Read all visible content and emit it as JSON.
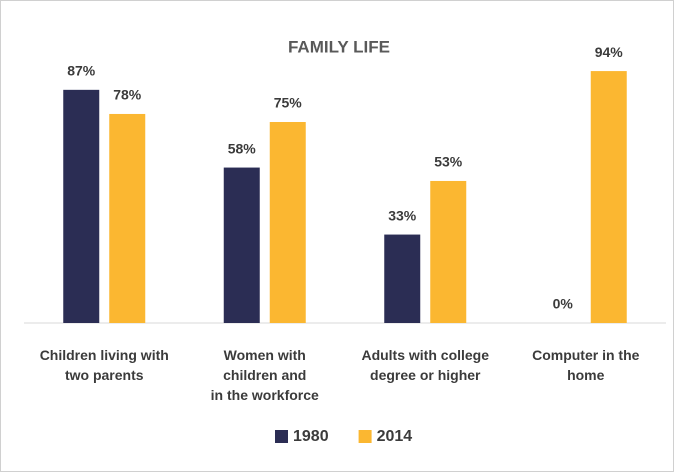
{
  "chart_data": {
    "type": "bar",
    "title": "FAMILY LIFE",
    "categories": [
      [
        "Children living with",
        "two parents"
      ],
      [
        "Women with",
        "children and",
        "in the workforce"
      ],
      [
        "Adults with college",
        "degree or higher"
      ],
      [
        "Computer in the",
        "home"
      ]
    ],
    "series": [
      {
        "name": "1980",
        "color": "#2b2d54",
        "values": [
          87,
          58,
          33,
          0
        ],
        "value_labels": [
          "87%",
          "58%",
          "33%",
          "0%"
        ]
      },
      {
        "name": "2014",
        "color": "#fbb731",
        "values": [
          78,
          75,
          53,
          94
        ],
        "value_labels": [
          "78%",
          "75%",
          "53%",
          "94%"
        ]
      }
    ],
    "ylim": [
      0,
      100
    ],
    "legend": "bottom"
  }
}
